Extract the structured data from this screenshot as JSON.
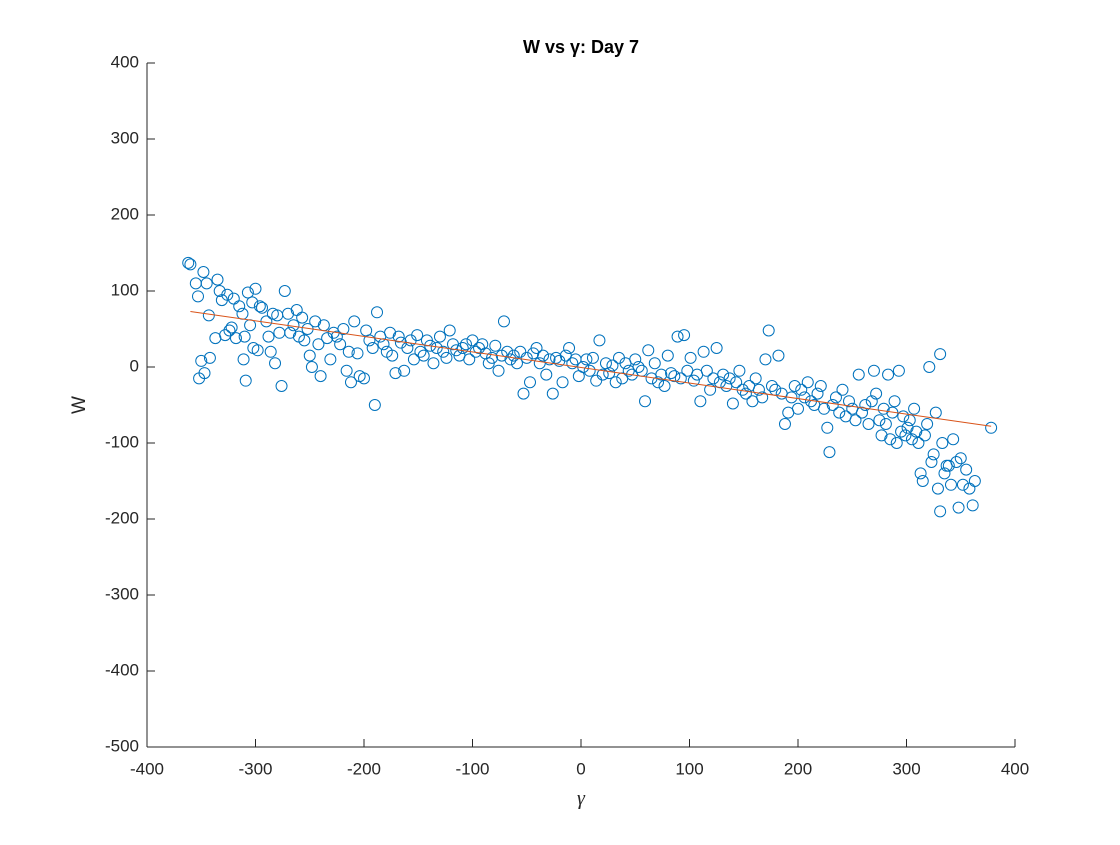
{
  "chart_data": {
    "type": "scatter",
    "title": "W vs γ: Day 7",
    "x_label": "γ",
    "y_label": "W",
    "xlim": [
      -400,
      400
    ],
    "ylim": [
      -500,
      400
    ],
    "xticks": [
      -400,
      -300,
      -200,
      -100,
      0,
      100,
      200,
      300,
      400
    ],
    "yticks": [
      -500,
      -400,
      -300,
      -200,
      -100,
      0,
      100,
      200,
      300,
      400
    ],
    "grid": false,
    "series": [
      {
        "type": "scatter",
        "color": "#0072bd",
        "x": [
          -362,
          -360,
          -355,
          -353,
          -352,
          -350,
          -348,
          -347,
          -345,
          -343,
          -342,
          -337,
          -335,
          -333,
          -331,
          -328,
          -326,
          -324,
          -322,
          -320,
          -318,
          -315,
          -312,
          -311,
          -310,
          -309,
          -307,
          -305,
          -303,
          -302,
          -300,
          -298,
          -296,
          -294,
          -290,
          -288,
          -286,
          -284,
          -282,
          -280,
          -278,
          -276,
          -273,
          -270,
          -268,
          -265,
          -262,
          -260,
          -257,
          -255,
          -252,
          -250,
          -248,
          -245,
          -242,
          -240,
          -237,
          -234,
          -231,
          -228,
          -225,
          -222,
          -219,
          -216,
          -214,
          -212,
          -209,
          -206,
          -204,
          -200,
          -198,
          -195,
          -192,
          -190,
          -188,
          -185,
          -182,
          -179,
          -176,
          -174,
          -171,
          -168,
          -166,
          -163,
          -160,
          -157,
          -154,
          -151,
          -148,
          -145,
          -142,
          -139,
          -136,
          -133,
          -130,
          -127,
          -124,
          -121,
          -118,
          -115,
          -112,
          -109,
          -106,
          -103,
          -100,
          -97,
          -94,
          -91,
          -88,
          -85,
          -82,
          -79,
          -76,
          -73,
          -71,
          -68,
          -65,
          -62,
          -59,
          -56,
          -53,
          -50,
          -47,
          -44,
          -41,
          -38,
          -35,
          -32,
          -29,
          -26,
          -23,
          -20,
          -17,
          -14,
          -11,
          -8,
          -5,
          -2,
          2,
          5,
          8,
          11,
          14,
          17,
          20,
          23,
          26,
          29,
          32,
          35,
          38,
          41,
          44,
          47,
          50,
          53,
          56,
          59,
          62,
          65,
          68,
          71,
          74,
          77,
          80,
          83,
          86,
          89,
          92,
          95,
          98,
          101,
          104,
          107,
          110,
          113,
          116,
          119,
          122,
          125,
          128,
          131,
          134,
          137,
          140,
          143,
          146,
          149,
          152,
          155,
          158,
          161,
          164,
          167,
          170,
          173,
          176,
          179,
          182,
          185,
          188,
          191,
          194,
          197,
          200,
          203,
          206,
          209,
          212,
          215,
          218,
          221,
          224,
          227,
          229,
          232,
          235,
          238,
          241,
          244,
          247,
          250,
          253,
          256,
          259,
          262,
          265,
          268,
          270,
          272,
          275,
          277,
          279,
          281,
          283,
          285,
          287,
          289,
          291,
          293,
          295,
          297,
          299,
          301,
          303,
          305,
          307,
          309,
          311,
          313,
          315,
          317,
          319,
          321,
          323,
          325,
          327,
          329,
          331,
          331,
          333,
          335,
          337,
          339,
          341,
          343,
          346,
          348,
          350,
          352,
          355,
          358,
          361,
          363,
          378
        ],
        "values": [
          137,
          135,
          110,
          93,
          -15,
          8,
          125,
          -8,
          110,
          68,
          12,
          38,
          115,
          100,
          88,
          42,
          95,
          48,
          52,
          90,
          38,
          80,
          70,
          10,
          40,
          -18,
          98,
          55,
          85,
          25,
          103,
          22,
          80,
          78,
          60,
          40,
          20,
          70,
          5,
          68,
          45,
          -25,
          100,
          70,
          45,
          55,
          75,
          40,
          65,
          35,
          50,
          15,
          0,
          60,
          30,
          -12,
          55,
          38,
          10,
          45,
          40,
          30,
          50,
          -5,
          20,
          -20,
          60,
          18,
          -12,
          -15,
          48,
          35,
          25,
          -50,
          72,
          40,
          30,
          20,
          45,
          15,
          -8,
          40,
          32,
          -5,
          25,
          35,
          10,
          42,
          20,
          15,
          35,
          28,
          5,
          25,
          40,
          20,
          12,
          48,
          30,
          22,
          15,
          25,
          30,
          10,
          35,
          20,
          25,
          30,
          18,
          5,
          12,
          28,
          -5,
          15,
          60,
          20,
          10,
          15,
          5,
          20,
          -35,
          12,
          -20,
          18,
          25,
          5,
          15,
          -10,
          10,
          -35,
          12,
          8,
          -20,
          15,
          25,
          5,
          10,
          -12,
          0,
          10,
          -5,
          12,
          -18,
          35,
          -10,
          5,
          -8,
          2,
          -20,
          12,
          -15,
          5,
          -5,
          -10,
          10,
          0,
          -5,
          -45,
          22,
          -15,
          5,
          -20,
          -10,
          -25,
          15,
          -8,
          -12,
          40,
          -15,
          42,
          -5,
          12,
          -18,
          -10,
          -45,
          20,
          -5,
          -30,
          -15,
          25,
          -20,
          -10,
          -25,
          -15,
          -48,
          -20,
          -5,
          -30,
          -35,
          -25,
          -45,
          -15,
          -30,
          -40,
          10,
          48,
          -25,
          -30,
          15,
          -35,
          -75,
          -60,
          -40,
          -25,
          -55,
          -30,
          -40,
          -20,
          -45,
          -50,
          -35,
          -25,
          -55,
          -80,
          -112,
          -50,
          -40,
          -60,
          -30,
          -65,
          -45,
          -55,
          -70,
          -10,
          -60,
          -50,
          -75,
          -45,
          -5,
          -35,
          -70,
          -90,
          -55,
          -75,
          -10,
          -95,
          -60,
          -45,
          -100,
          -5,
          -85,
          -65,
          -90,
          -80,
          -70,
          -95,
          -55,
          -85,
          -100,
          -140,
          -150,
          -90,
          -75,
          0,
          -125,
          -115,
          -60,
          -160,
          -190,
          17,
          -100,
          -140,
          -130,
          -130,
          -155,
          -95,
          -125,
          -185,
          -120,
          -155,
          -135,
          -160,
          -182,
          -150,
          -80
        ]
      },
      {
        "type": "line",
        "color": "#d95319",
        "x": [
          -360,
          378
        ],
        "values": [
          73,
          -78
        ]
      }
    ]
  }
}
